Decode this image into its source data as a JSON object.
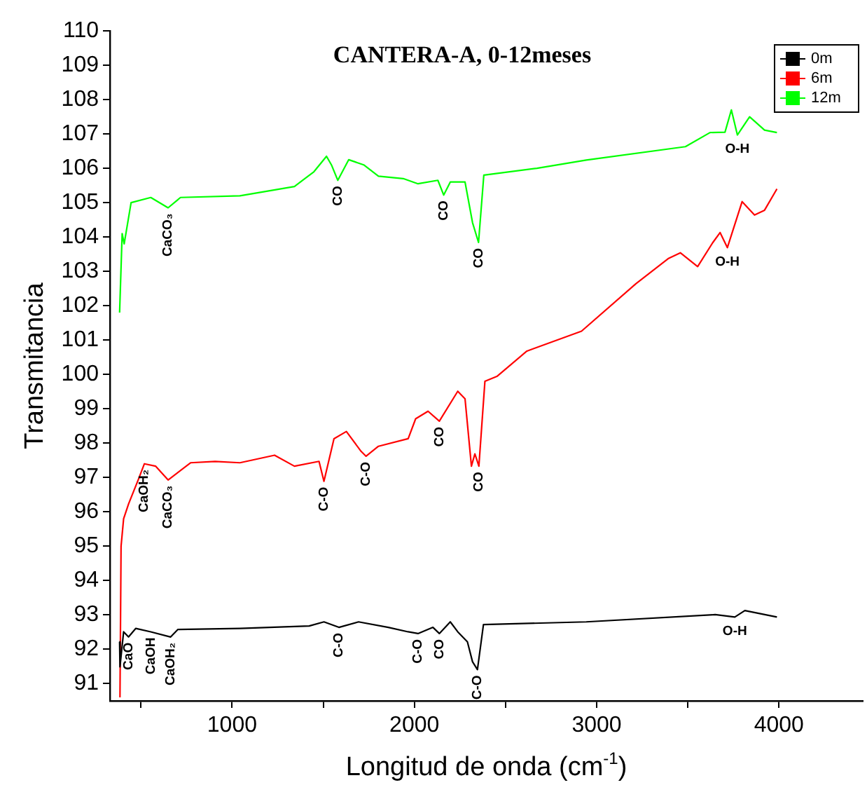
{
  "chart_data": {
    "type": "line",
    "title": "CANTERA-A, 0-12meses",
    "xlabel": "Longitud de onda (cm$^{-1}$)",
    "ylabel": "Transmitancia",
    "xlim": [
      330,
      4460
    ],
    "ylim": [
      90.5,
      110
    ],
    "xticks": [
      {
        "value": 500,
        "label": null
      },
      1000,
      {
        "value": 1500,
        "label": null
      },
      2000,
      {
        "value": 2500,
        "label": null
      },
      3000,
      {
        "value": 3500,
        "label": null
      },
      4000
    ],
    "yticks": [
      91,
      92,
      93,
      94,
      95,
      96,
      97,
      98,
      99,
      100,
      101,
      102,
      103,
      104,
      105,
      106,
      107,
      108,
      109,
      110
    ],
    "grid": false,
    "legend": "top right",
    "marker": "none",
    "line_style": "solid",
    "series": [
      {
        "name": "0m",
        "color": "#000000",
        "x": [
          383,
          385,
          405,
          432,
          472,
          554,
          663,
          703,
          1043,
          1423,
          1504,
          1586,
          1694,
          1857,
          1966,
          2020,
          2102,
          2137,
          2197,
          2238,
          2291,
          2319,
          2346,
          2379,
          2943,
          3650,
          3758,
          3813,
          3989
        ],
        "values": [
          92.22,
          91.49,
          92.51,
          92.36,
          92.61,
          92.51,
          92.36,
          92.58,
          92.61,
          92.68,
          92.8,
          92.64,
          92.8,
          92.64,
          92.51,
          92.46,
          92.64,
          92.46,
          92.8,
          92.51,
          92.22,
          91.64,
          91.41,
          92.72,
          92.8,
          93.01,
          92.94,
          93.13,
          92.94
        ]
      },
      {
        "name": "6m",
        "color": "#ff0000",
        "x": [
          385,
          391,
          405,
          432,
          487,
          519,
          581,
          649,
          772,
          907,
          1043,
          1233,
          1342,
          1477,
          1504,
          1559,
          1627,
          1708,
          1735,
          1803,
          1966,
          2007,
          2075,
          2137,
          2238,
          2278,
          2313,
          2332,
          2354,
          2387,
          2455,
          2617,
          2917,
          3215,
          3392,
          3459,
          3554,
          3636,
          3677,
          3717,
          3798,
          3866,
          3921,
          3989
        ],
        "values": [
          90.6,
          95.0,
          95.8,
          96.23,
          96.96,
          97.4,
          97.33,
          96.93,
          97.43,
          97.47,
          97.43,
          97.65,
          97.33,
          97.47,
          96.89,
          98.13,
          98.34,
          97.76,
          97.62,
          97.91,
          98.13,
          98.71,
          98.93,
          98.64,
          99.51,
          99.29,
          97.33,
          97.69,
          97.33,
          99.8,
          99.95,
          100.68,
          101.26,
          102.64,
          103.37,
          103.54,
          103.14,
          103.83,
          104.13,
          103.69,
          105.03,
          104.64,
          104.78,
          105.4
        ]
      },
      {
        "name": "12m",
        "color": "#00ff00",
        "x": [
          383,
          397,
          408,
          446,
          554,
          649,
          717,
          1043,
          1342,
          1449,
          1518,
          1545,
          1580,
          1640,
          1722,
          1803,
          1939,
          2020,
          2129,
          2161,
          2197,
          2278,
          2319,
          2352,
          2381,
          2672,
          2943,
          3487,
          3622,
          3704,
          3739,
          3772,
          3839,
          3921,
          3989
        ],
        "values": [
          101.8,
          104.1,
          103.8,
          105.0,
          105.15,
          104.85,
          105.15,
          105.2,
          105.47,
          105.9,
          106.35,
          106.1,
          105.65,
          106.25,
          106.1,
          105.77,
          105.7,
          105.55,
          105.65,
          105.22,
          105.6,
          105.6,
          104.42,
          103.84,
          105.8,
          106.0,
          106.24,
          106.63,
          107.04,
          107.05,
          107.7,
          106.97,
          107.5,
          107.11,
          107.04
        ]
      }
    ],
    "annotations": [
      {
        "text": "CaCO₃",
        "x": 649,
        "y": 104.85
      },
      {
        "text": "CO",
        "x": 1580,
        "y": 105.65
      },
      {
        "text": "CO",
        "x": 2161,
        "y": 105.22
      },
      {
        "text": "CO",
        "x": 2352,
        "y": 103.84
      },
      {
        "text": "CaOH₂",
        "x": 519,
        "y": 97.4
      },
      {
        "text": "CaCO₃",
        "x": 649,
        "y": 96.93
      },
      {
        "text": "C-O",
        "x": 1504,
        "y": 96.89
      },
      {
        "text": "C-O",
        "x": 1735,
        "y": 97.62
      },
      {
        "text": "CO",
        "x": 2137,
        "y": 98.64
      },
      {
        "text": "CO",
        "x": 2354,
        "y": 97.33
      },
      {
        "text": "CaO",
        "x": 432,
        "y": 92.36
      },
      {
        "text": "CaOH",
        "x": 554,
        "y": 92.51
      },
      {
        "text": "CaOH₂",
        "x": 663,
        "y": 92.36
      },
      {
        "text": "C-O",
        "x": 1586,
        "y": 92.64
      },
      {
        "text": "C-O",
        "x": 2020,
        "y": 92.46
      },
      {
        "text": "CO",
        "x": 2137,
        "y": 92.46
      },
      {
        "text": "C-O",
        "x": 2346,
        "y": 91.41
      },
      {
        "text": "O-H",
        "x": 3772,
        "y": 106.97
      },
      {
        "text": "O-H",
        "x": 3717,
        "y": 103.69
      },
      {
        "text": "O-H",
        "x": 3758,
        "y": 92.94
      }
    ]
  }
}
